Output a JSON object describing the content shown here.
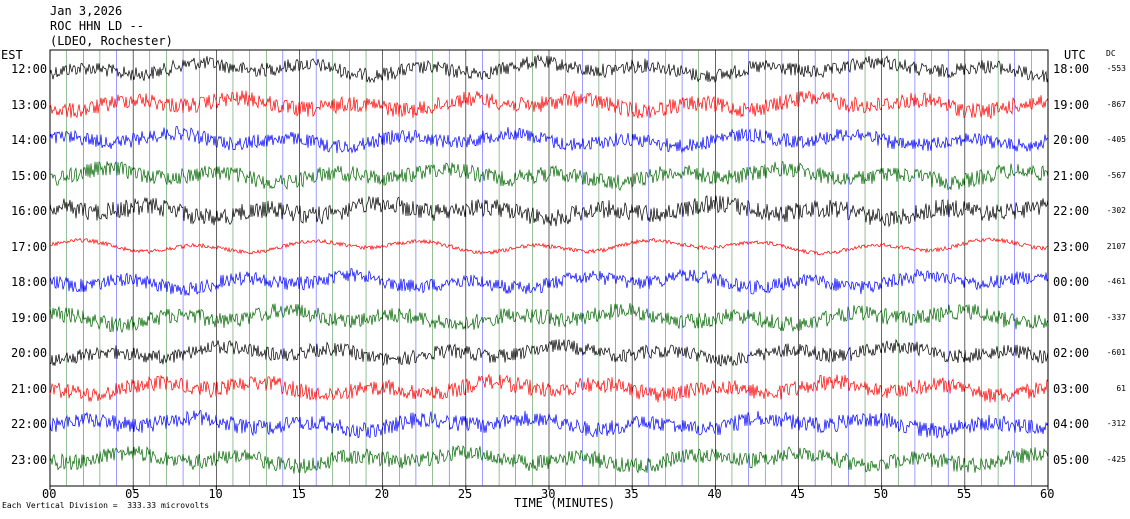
{
  "header": {
    "date": "Jan 3,2026",
    "station": "ROC HHN LD --",
    "location": "(LDEO, Rochester)"
  },
  "chart_data": {
    "type": "line",
    "title": "",
    "xlabel": "TIME (MINUTES)",
    "xlim": [
      0,
      60
    ],
    "x_ticks": [
      "00",
      "05",
      "10",
      "15",
      "20",
      "25",
      "30",
      "35",
      "40",
      "45",
      "50",
      "55",
      "60"
    ],
    "left_axis_label": "EST",
    "right_axis_label": "UTC",
    "dc_header": "DC",
    "est_hours": [
      "12:00",
      "13:00",
      "14:00",
      "15:00",
      "16:00",
      "17:00",
      "18:00",
      "19:00",
      "20:00",
      "21:00",
      "22:00",
      "23:00"
    ],
    "utc_hours": [
      "18:00",
      "19:00",
      "20:00",
      "21:00",
      "22:00",
      "23:00",
      "00:00",
      "01:00",
      "02:00",
      "03:00",
      "04:00",
      "05:00"
    ],
    "dc_offsets": [
      "-553",
      "-867",
      "-405",
      "-567",
      "-302",
      "2107",
      "-461",
      "-337",
      "-601",
      "61",
      "-312",
      "-425"
    ],
    "trace_colors": [
      "#000000",
      "#ff0000",
      "#0000ff",
      "#006600",
      "#000000",
      "#ff0000",
      "#0000ff",
      "#006600",
      "#000000",
      "#ff0000",
      "#0000ff",
      "#006600"
    ],
    "scale_note": "Each Vertical Division =  333.33 microvolts",
    "grid": true
  }
}
